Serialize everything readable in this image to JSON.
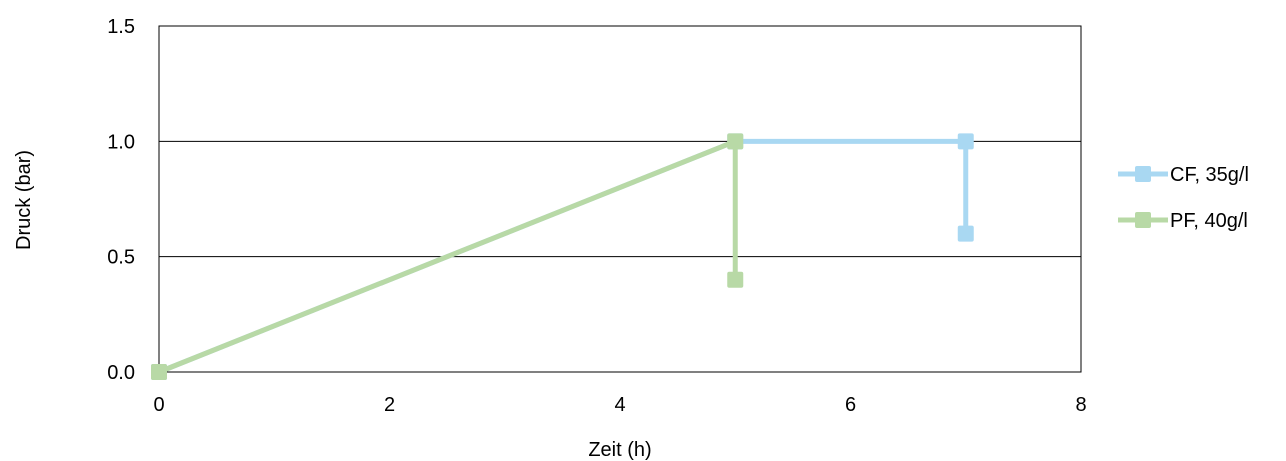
{
  "chart_data": {
    "type": "line",
    "title": "",
    "xlabel": "Zeit (h)",
    "ylabel": "Druck (bar)",
    "xlim": [
      0,
      8
    ],
    "ylim": [
      0,
      1.5
    ],
    "x_ticks": [
      0,
      2,
      4,
      6,
      8
    ],
    "y_ticks": [
      0,
      0.5,
      1,
      1.5
    ],
    "x_tick_labels": [
      "0",
      "2",
      "4",
      "6",
      "8"
    ],
    "y_tick_labels": [
      "0.0",
      "0.5",
      "1.0",
      "1.5"
    ],
    "grid": "horizontal",
    "legend_position": "right",
    "series": [
      {
        "name": "CF, 35g/l",
        "color": "#a9d8f2",
        "points": [
          [
            0,
            0
          ],
          [
            5,
            1.0
          ],
          [
            7,
            1.0
          ],
          [
            7,
            0.6
          ]
        ]
      },
      {
        "name": "PF, 40g/l",
        "color": "#b8d9a6",
        "points": [
          [
            0,
            0
          ],
          [
            5,
            1.0
          ],
          [
            5,
            0.4
          ]
        ]
      }
    ]
  }
}
